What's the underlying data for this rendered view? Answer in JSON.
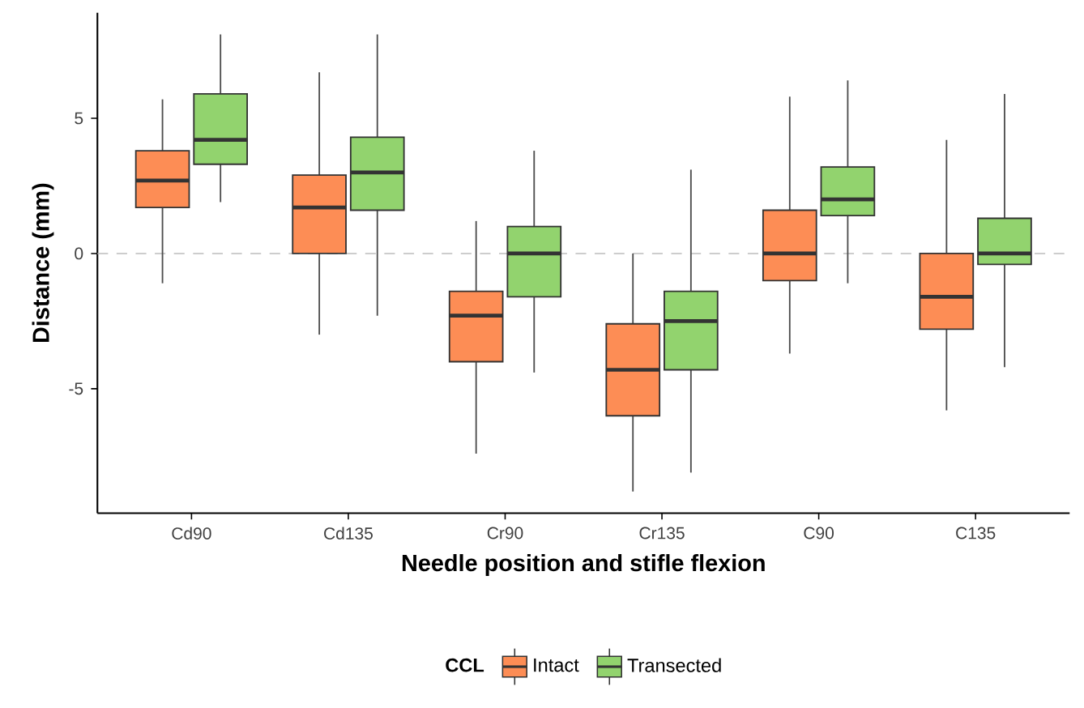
{
  "chart_data": {
    "type": "box",
    "xlabel": "Needle position and stifle flexion",
    "ylabel": "Distance (mm)",
    "legend_title": "CCL",
    "categories": [
      "Cd90",
      "Cd135",
      "Cr90",
      "Cr135",
      "C90",
      "C135"
    ],
    "ylim": [
      -9.6,
      8.9
    ],
    "yticks": [
      -5,
      0,
      5
    ],
    "legend": "bottom",
    "ref_lines": [
      {
        "axis": "y",
        "value": 0,
        "color": "#bdbdbd",
        "line_style": "dashed"
      }
    ],
    "series": [
      {
        "name": "Intact",
        "color": "#fd8d55",
        "boxes": [
          {
            "low": -1.1,
            "q1": 1.7,
            "median": 2.7,
            "q3": 3.8,
            "high": 5.7
          },
          {
            "low": -3.0,
            "q1": 0.0,
            "median": 1.7,
            "q3": 2.9,
            "high": 6.7
          },
          {
            "low": -7.4,
            "q1": -4.0,
            "median": -2.3,
            "q3": -1.4,
            "high": 1.2
          },
          {
            "low": -8.8,
            "q1": -6.0,
            "median": -4.3,
            "q3": -2.6,
            "high": 0.0
          },
          {
            "low": -3.7,
            "q1": -1.0,
            "median": 0.0,
            "q3": 1.6,
            "high": 5.8
          },
          {
            "low": -5.8,
            "q1": -2.8,
            "median": -1.6,
            "q3": 0.0,
            "high": 4.2
          }
        ]
      },
      {
        "name": "Transected",
        "color": "#92d36e",
        "boxes": [
          {
            "low": 1.9,
            "q1": 3.3,
            "median": 4.2,
            "q3": 5.9,
            "high": 8.1
          },
          {
            "low": -2.3,
            "q1": 1.6,
            "median": 3.0,
            "q3": 4.3,
            "high": 8.1
          },
          {
            "low": -4.4,
            "q1": -1.6,
            "median": 0.0,
            "q3": 1.0,
            "high": 3.8
          },
          {
            "low": -8.1,
            "q1": -4.3,
            "median": -2.5,
            "q3": -1.4,
            "high": 3.1
          },
          {
            "low": -1.1,
            "q1": 1.4,
            "median": 2.0,
            "q3": 3.2,
            "high": 6.4
          },
          {
            "low": -4.2,
            "q1": -0.4,
            "median": 0.0,
            "q3": 1.3,
            "high": 5.9
          }
        ]
      }
    ]
  }
}
